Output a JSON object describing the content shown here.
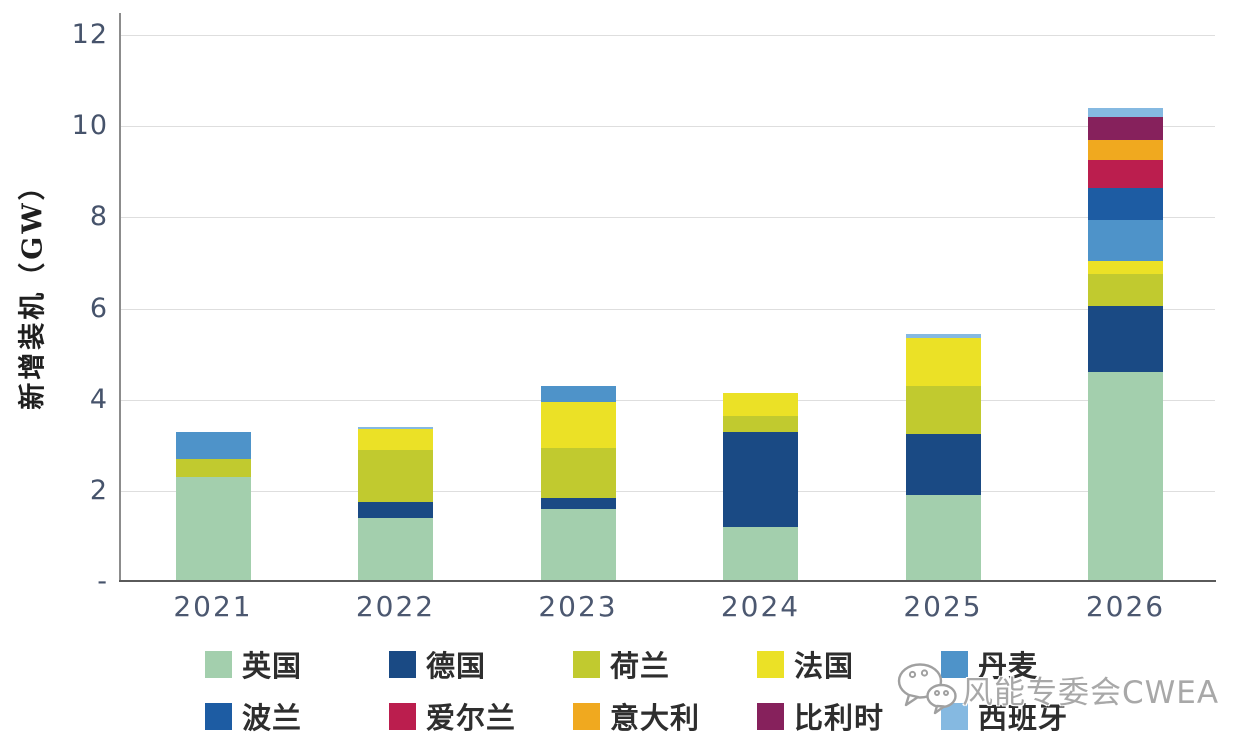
{
  "chart_data": {
    "type": "bar",
    "stacked": true,
    "title": "",
    "xlabel": "",
    "ylabel": "新增装机（GW）",
    "ylim": [
      0,
      12
    ],
    "yticks": [
      0,
      2,
      4,
      6,
      8,
      10,
      12
    ],
    "ytick_labels": [
      "-",
      "2",
      "4",
      "6",
      "8",
      "10",
      "12"
    ],
    "categories": [
      "2021",
      "2022",
      "2023",
      "2024",
      "2025",
      "2026"
    ],
    "series": [
      {
        "name": "英国",
        "color": "#a3cfad",
        "values": [
          2.3,
          1.4,
          1.6,
          1.2,
          1.9,
          4.6
        ]
      },
      {
        "name": "德国",
        "color": "#1a4a84",
        "values": [
          0,
          0.35,
          0.25,
          2.1,
          1.35,
          1.45
        ]
      },
      {
        "name": "荷兰",
        "color": "#c1ca2f",
        "values": [
          0.4,
          1.15,
          1.1,
          0.35,
          1.05,
          0.7
        ]
      },
      {
        "name": "法国",
        "color": "#ebe126",
        "values": [
          0,
          0.45,
          1.0,
          0.5,
          1.05,
          0.3
        ]
      },
      {
        "name": "丹麦",
        "color": "#4e93c9",
        "values": [
          0.6,
          0,
          0.35,
          0,
          0,
          0.9
        ]
      },
      {
        "name": "波兰",
        "color": "#1d5ca3",
        "values": [
          0,
          0,
          0,
          0,
          0,
          0.7
        ]
      },
      {
        "name": "爱尔兰",
        "color": "#bb1e4e",
        "values": [
          0,
          0,
          0,
          0,
          0,
          0.6
        ]
      },
      {
        "name": "意大利",
        "color": "#f0a91f",
        "values": [
          0,
          0,
          0,
          0,
          0,
          0.45
        ]
      },
      {
        "name": "比利时",
        "color": "#86215c",
        "values": [
          0,
          0,
          0,
          0,
          0,
          0.5
        ]
      },
      {
        "name": "西班牙",
        "color": "#85b9e1",
        "values": [
          0,
          0.05,
          0,
          0,
          0.1,
          0.2
        ]
      }
    ],
    "legend_position": "bottom",
    "grid": true
  },
  "watermark": {
    "text": "风能专委会CWEA"
  }
}
